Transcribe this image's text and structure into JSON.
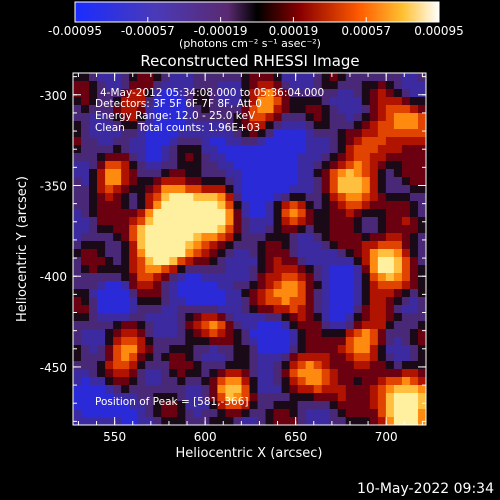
{
  "colorbar": {
    "ticks": [
      "-0.00095",
      "-0.00057",
      "-0.00019",
      "0.00019",
      "0.00057",
      "0.00095"
    ],
    "units_label": "(photons cm⁻² s⁻¹ asec⁻²)"
  },
  "chart_data": {
    "type": "heatmap",
    "title": "Reconstructed RHESSI Image",
    "xlabel": "Heliocentric X (arcsec)",
    "ylabel": "Heliocentric Y (arcsec)",
    "xlim": [
      527,
      722
    ],
    "ylim": [
      -482,
      -288
    ],
    "x_ticks": [
      550,
      600,
      650,
      700
    ],
    "y_ticks": [
      -300,
      -350,
      -400,
      -450
    ],
    "colorbar_range": [
      -0.00095,
      0.00095
    ],
    "peak": [
      581,
      -366
    ],
    "annotations": [
      "4-May-2012 05:34:08.000 to 05:36:04.000",
      "Detectors: 3F 5F 6F 7F 8F, Att 0",
      "Energy Range: 12.0 - 25.0 keV",
      "Clean    Total counts: 1.96E+03"
    ],
    "peak_label": "Position of Peak = [581,-366]"
  },
  "footer": "10-May-2022 09:34"
}
